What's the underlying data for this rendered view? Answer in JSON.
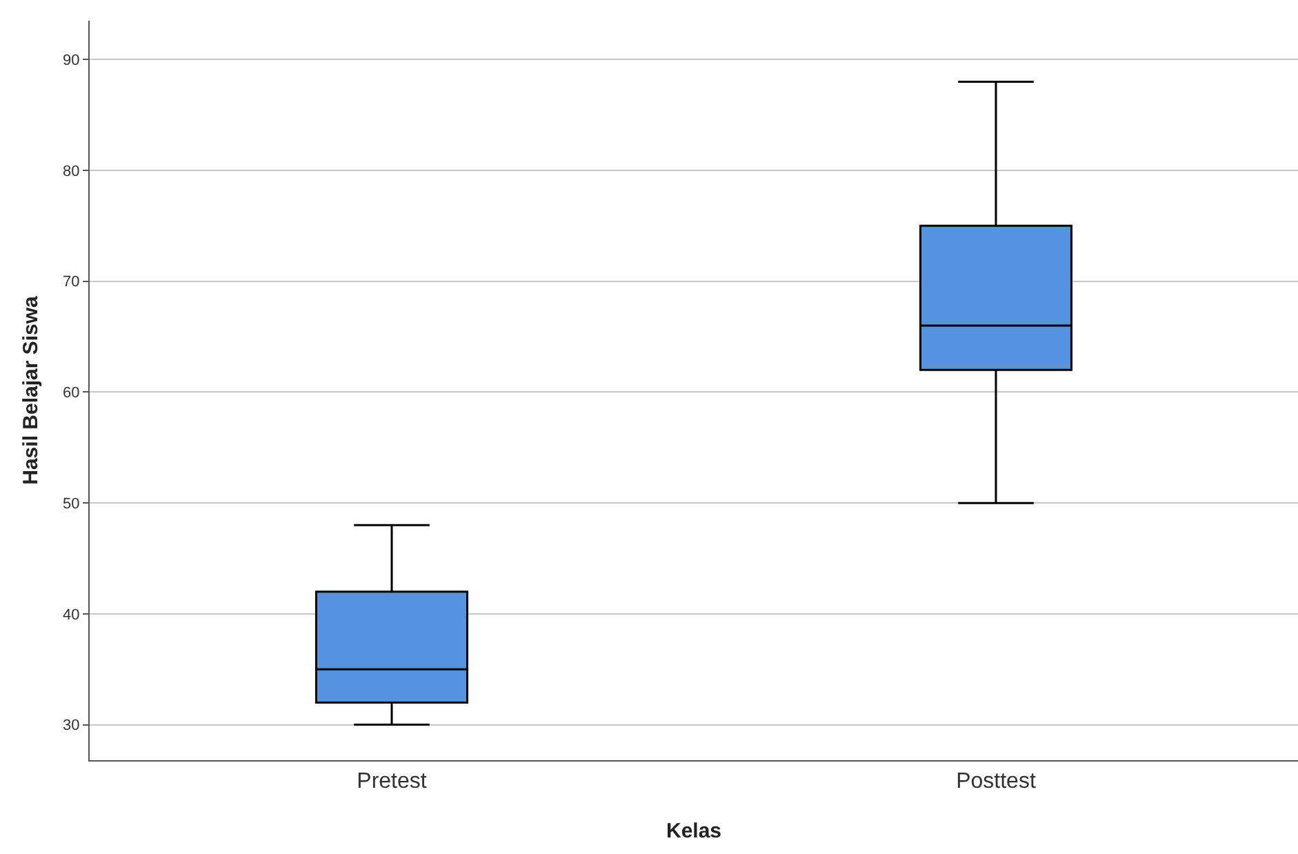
{
  "chart_data": {
    "type": "box",
    "xlabel": "Kelas",
    "ylabel": "Hasil Belajar Siswa",
    "categories": [
      "Pretest",
      "Posttest"
    ],
    "boxes": [
      {
        "low": 30,
        "q1": 32,
        "median": 35,
        "q3": 42,
        "high": 48
      },
      {
        "low": 50,
        "q1": 62,
        "median": 66,
        "q3": 75,
        "high": 88
      }
    ],
    "color": "#5592e0",
    "ylim": [
      26.8,
      93.5
    ],
    "yticks": [
      30,
      40,
      50,
      60,
      70,
      80,
      90
    ],
    "grid": "y"
  }
}
